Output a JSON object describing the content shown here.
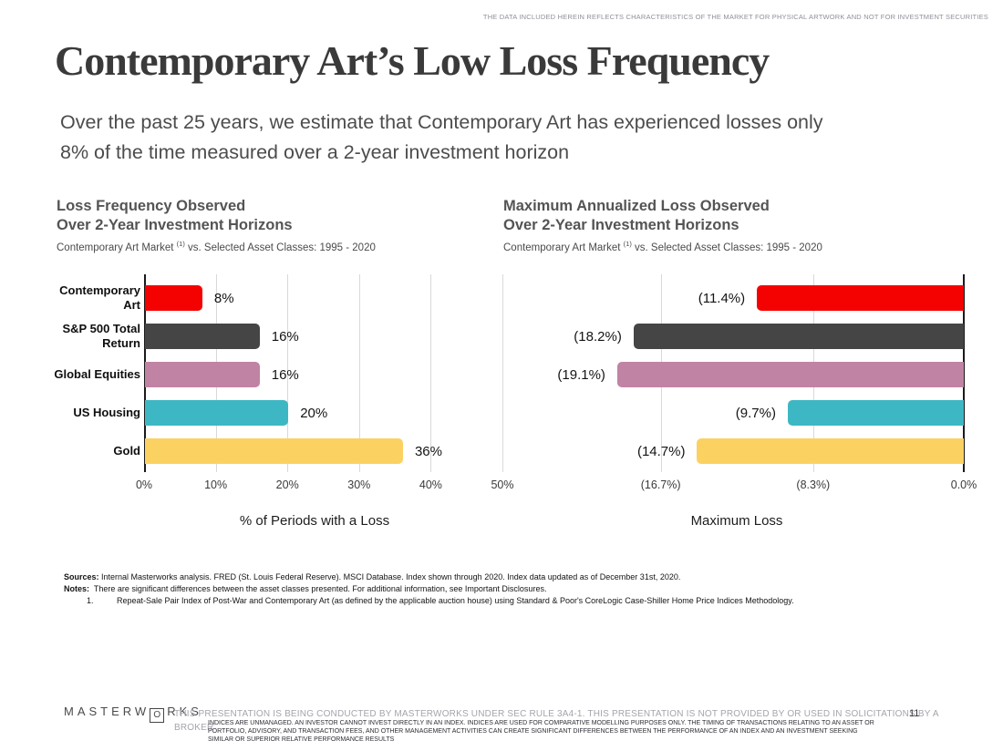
{
  "meta": {
    "top_disclaimer": "THE DATA INCLUDED HEREIN REFLECTS CHARACTERISTICS OF THE MARKET FOR PHYSICAL ARTWORK AND NOT FOR INVESTMENT SECURITIES"
  },
  "header": {
    "title": "Contemporary Art’s Low Loss Frequency",
    "subtitle_line1": "Over the past 25 years, we estimate that Contemporary Art has experienced losses only",
    "subtitle_line2": "8% of the time measured over a 2-year investment horizon"
  },
  "chart_data": [
    {
      "type": "bar",
      "orientation": "horizontal",
      "anchor": "left",
      "title_line1": "Loss Frequency Observed",
      "title_line2": "Over 2-Year Investment Horizons",
      "subtitle_prefix": "Contemporary Art Market ",
      "subtitle_sup": "(1)",
      "subtitle_suffix": " vs. Selected Asset Classes: 1995 - 2020",
      "categories": [
        "Contemporary Art",
        "S&P 500 Total Return",
        "Global Equities",
        "US Housing",
        "Gold"
      ],
      "row_labels": [
        [
          "Contemporary",
          "Art"
        ],
        [
          "S&P 500 Total",
          "Return"
        ],
        [
          "Global Equities"
        ],
        [
          "US Housing"
        ],
        [
          "Gold"
        ]
      ],
      "values": [
        8,
        16,
        16,
        20,
        36
      ],
      "value_labels": [
        "8%",
        "16%",
        "16%",
        "20%",
        "36%"
      ],
      "colors": [
        "#f40101",
        "#454545",
        "#c083a4",
        "#3eb7c4",
        "#fbd262"
      ],
      "xlabel": "% of Periods with a Loss",
      "x_ticks": [
        "0%",
        "10%",
        "20%",
        "30%",
        "40%",
        "50%"
      ],
      "x_tick_values": [
        0,
        10,
        20,
        30,
        40,
        50
      ],
      "xlim": [
        0,
        50
      ],
      "grid": true
    },
    {
      "type": "bar",
      "orientation": "horizontal",
      "anchor": "right",
      "title_line1": "Maximum Annualized Loss Observed",
      "title_line2": "Over 2-Year Investment Horizons",
      "subtitle_prefix": "Contemporary Art Market ",
      "subtitle_sup": "(1)",
      "subtitle_suffix": " vs. Selected Asset Classes: 1995 - 2020",
      "categories": [
        "Contemporary Art",
        "S&P 500 Total Return",
        "Global Equities",
        "US Housing",
        "Gold"
      ],
      "values": [
        11.4,
        18.2,
        19.1,
        9.7,
        14.7
      ],
      "value_labels": [
        "(11.4%)",
        "(18.2%)",
        "(19.1%)",
        "(9.7%)",
        "(14.7%)"
      ],
      "colors": [
        "#f40101",
        "#454545",
        "#c083a4",
        "#3eb7c4",
        "#fbd262"
      ],
      "xlabel": "Maximum Loss",
      "x_ticks": [
        "(16.7%)",
        "(8.3%)",
        "0.0%"
      ],
      "x_tick_values": [
        16.7,
        8.3,
        0
      ],
      "xlim": [
        25,
        0
      ],
      "grid": true
    }
  ],
  "footnotes": {
    "sources_label": "Sources:",
    "sources_text": " Internal Masterworks analysis. FRED (St. Louis Federal Reserve). MSCI Database. Index shown through 2020. Index data updated as of December 31st, 2020.",
    "notes_label": "Notes:",
    "notes_text": "  There are significant differences between the asset classes presented. For additional information, see Important Disclosures.",
    "note1_number": "1.",
    "note1_text": "Repeat-Sale Pair Index of Post-War and Contemporary Art (as defined by the applicable auction house) using Standard & Poor's CoreLogic Case-Shiller Home Price Indices Methodology."
  },
  "footer": {
    "logo_left": "MASTERW",
    "logo_boxed": "O",
    "logo_right": "RKS",
    "disclaimer_line1": "THIS PRESENTATION  IS BEING CONDUCTED BY MASTERWORKS UNDER SEC RULE 3A4-1. THIS PRESENTATION  IS NOT PROVIDED BY OR USED IN SOLICITATIONS BY A",
    "disclaimer_line2": "BROKER",
    "fine_print_line1": "INDICES ARE UNMANAGED. AN INVESTOR CANNOT INVEST DIRECTLY IN AN INDEX. INDICES ARE USED FOR COMPARATIVE MODELLING PURPOSES ONLY. THE TIMING OF TRANSACTIONS RELATING TO AN ASSET OR",
    "fine_print_line2": "PORTFOLIO, ADVISORY, AND TRANSACTION FEES, AND OTHER MANAGEMENT ACTIVITIES CAN CREATE SIGNIFICANT DIFFERENCES BETWEEN THE PERFORMANCE OF AN INDEX AND AN INVESTMENT SEEKING",
    "fine_print_line3": "SIMILAR OR SUPERIOR RELATIVE PERFORMANCE RESULTS",
    "page_number": "11"
  }
}
